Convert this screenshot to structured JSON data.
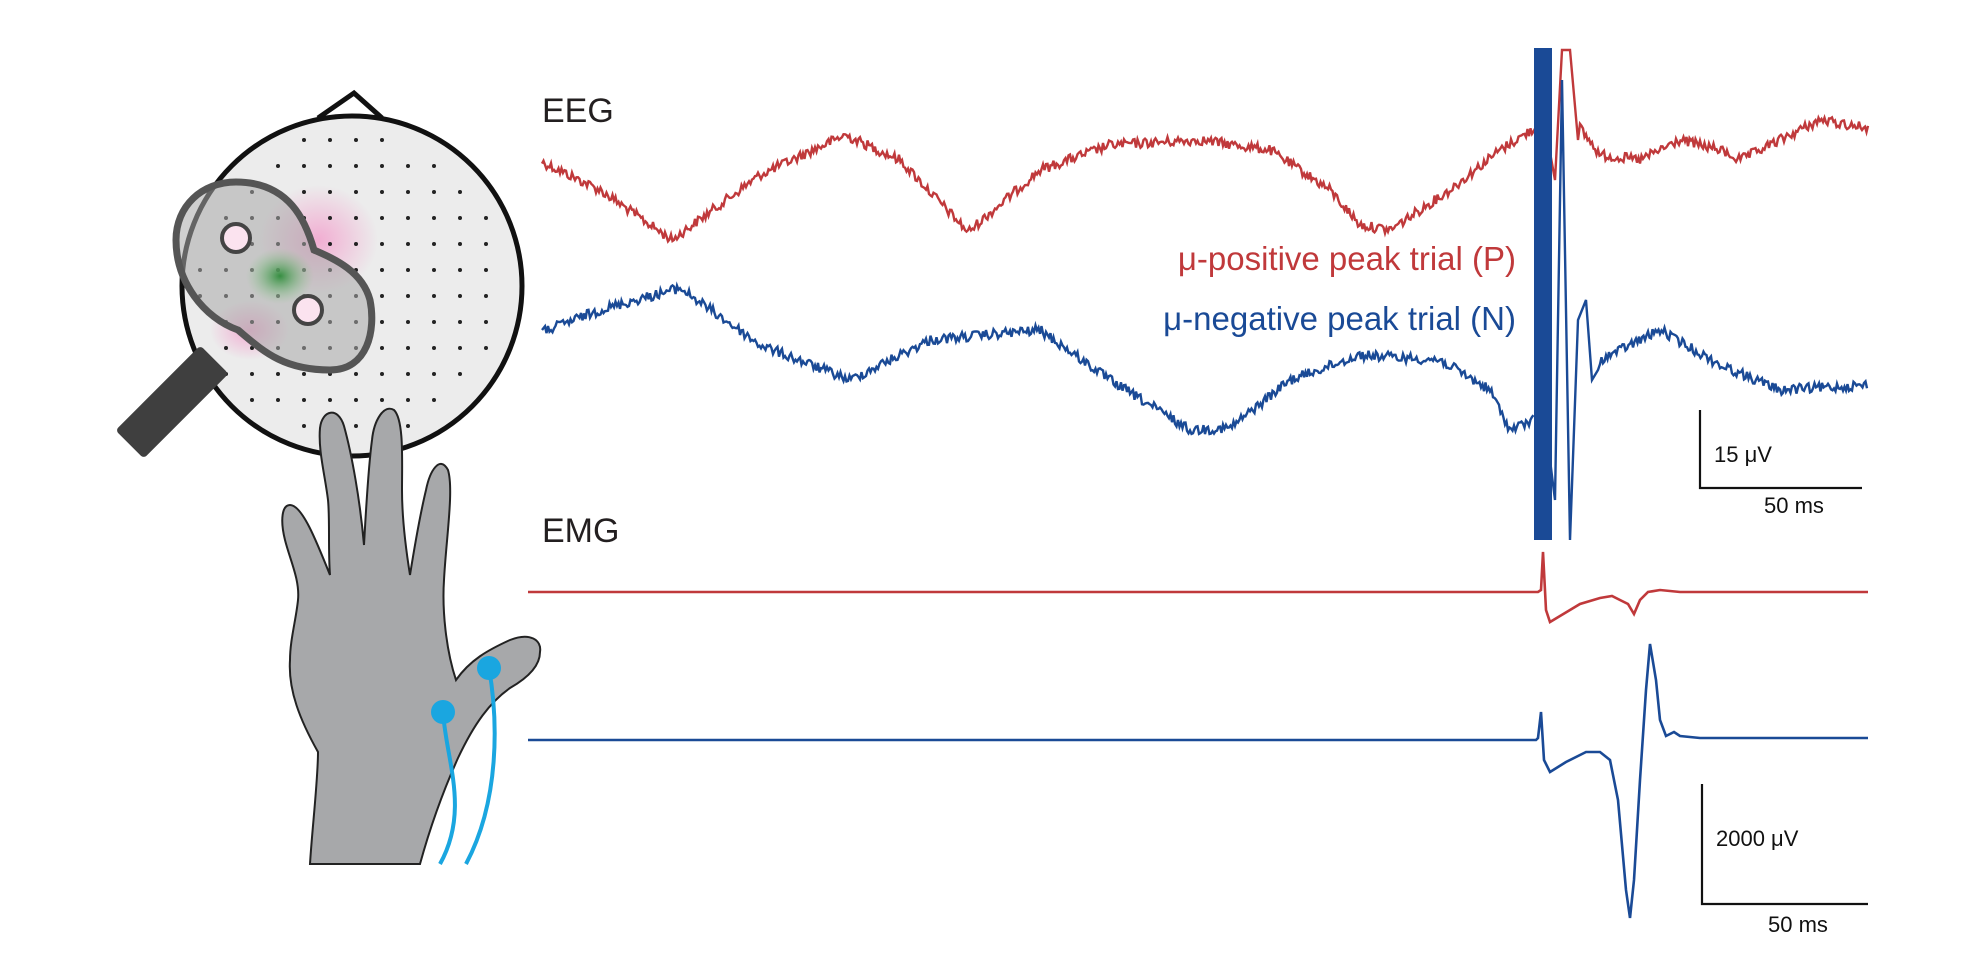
{
  "eeg": {
    "label": "EEG",
    "legend_positive": "μ-positive peak trial (P)",
    "legend_negative": "μ-negative peak trial (N)",
    "scale_y": "15 μV",
    "scale_x": "50 ms"
  },
  "emg": {
    "label": "EMG",
    "scale_y": "2000 μV",
    "scale_x": "50 ms"
  },
  "colors": {
    "positive_trial": "#c0393b",
    "negative_trial": "#1a4a96",
    "head_fill": "#ececec",
    "coil": "#8c8c8c",
    "hand": "#a7a8aa",
    "electrode": "#1aa6e0"
  },
  "icons": [
    "head-electrode-cap-icon",
    "tms-coil-icon",
    "hand-icon",
    "emg-electrode-icon"
  ]
}
